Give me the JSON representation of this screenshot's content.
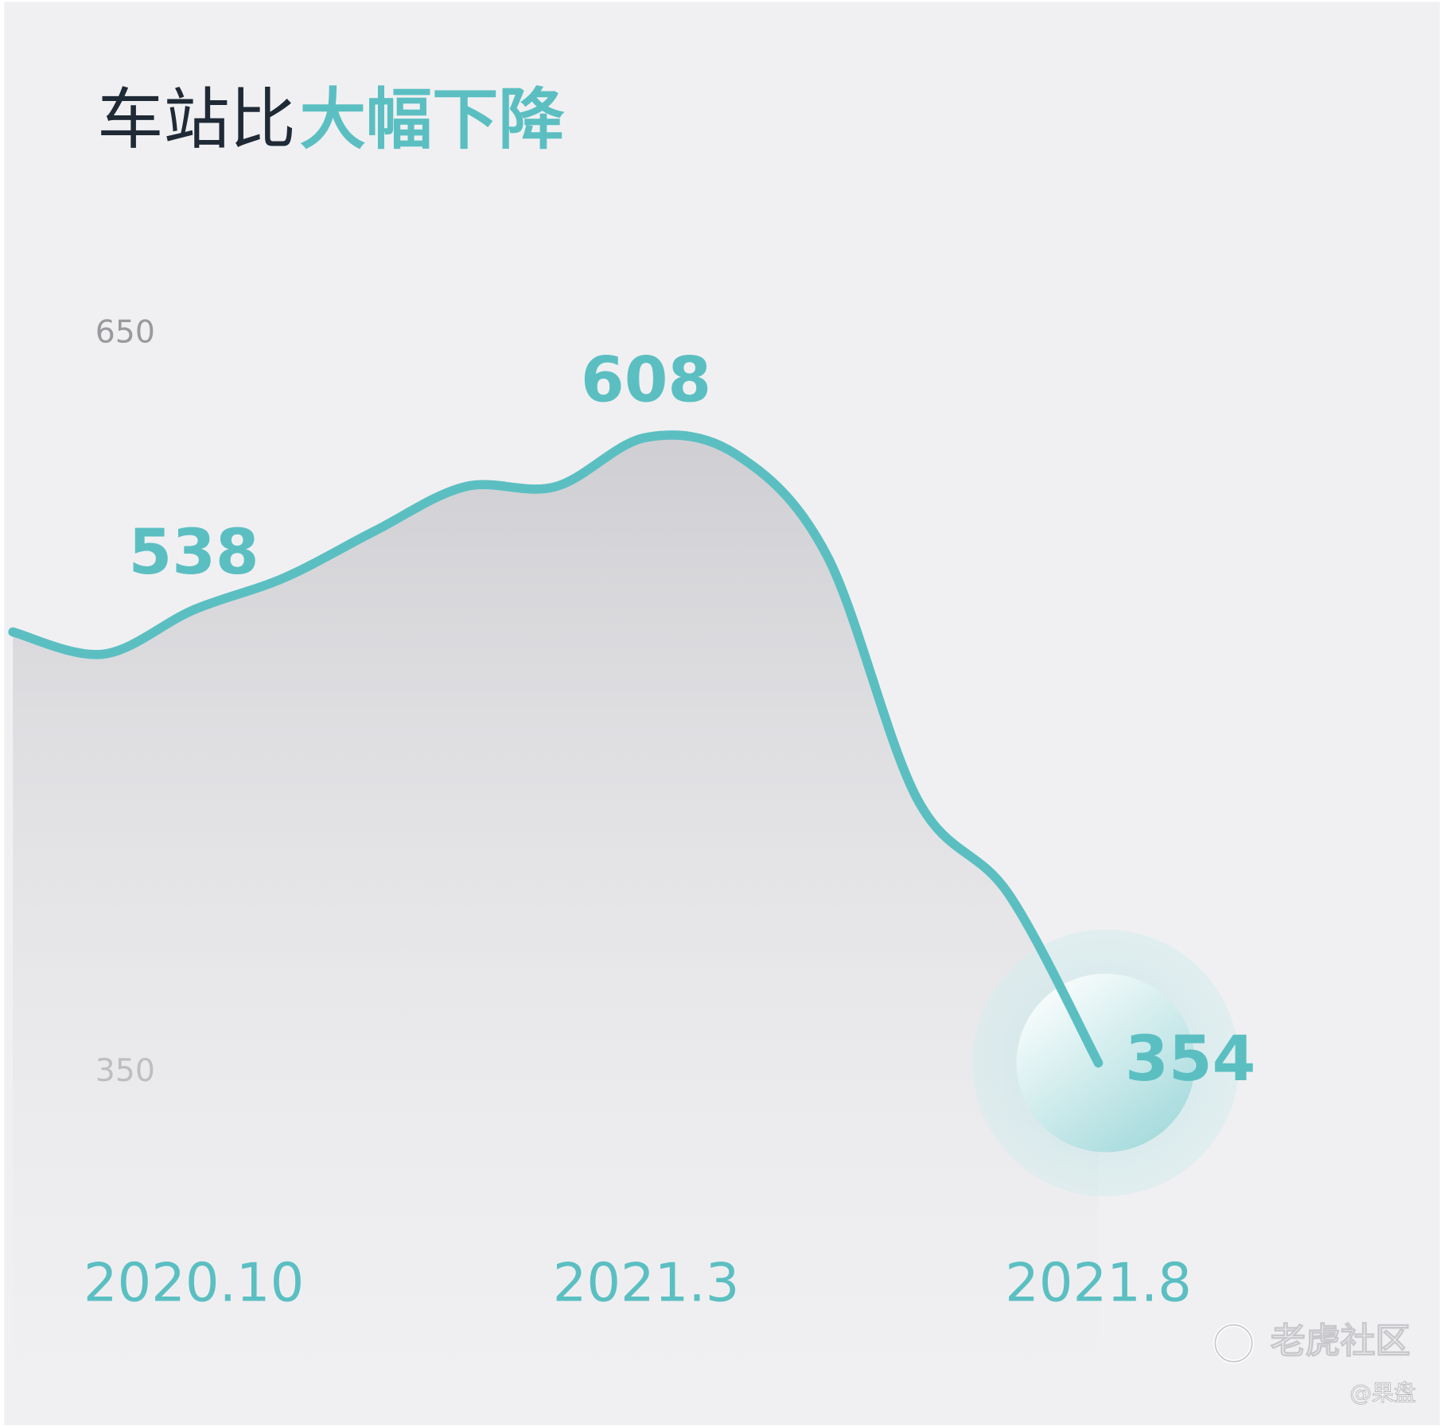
{
  "chart_data": {
    "type": "line",
    "title": "车站比",
    "title_highlight": "大幅下降",
    "categories": [
      null,
      null,
      "2020.10",
      null,
      null,
      null,
      null,
      "2021.3",
      null,
      null,
      null,
      null,
      "2021.8"
    ],
    "values": [
      529,
      520,
      538,
      551,
      570,
      588,
      588,
      608,
      601,
      560,
      461,
      423,
      354
    ],
    "color": "#5bbfc2",
    "ylim": [
      350,
      650
    ],
    "yticks": [
      350,
      650
    ],
    "watermark": "老虎社区",
    "watermark_sub": "@果盘"
  }
}
